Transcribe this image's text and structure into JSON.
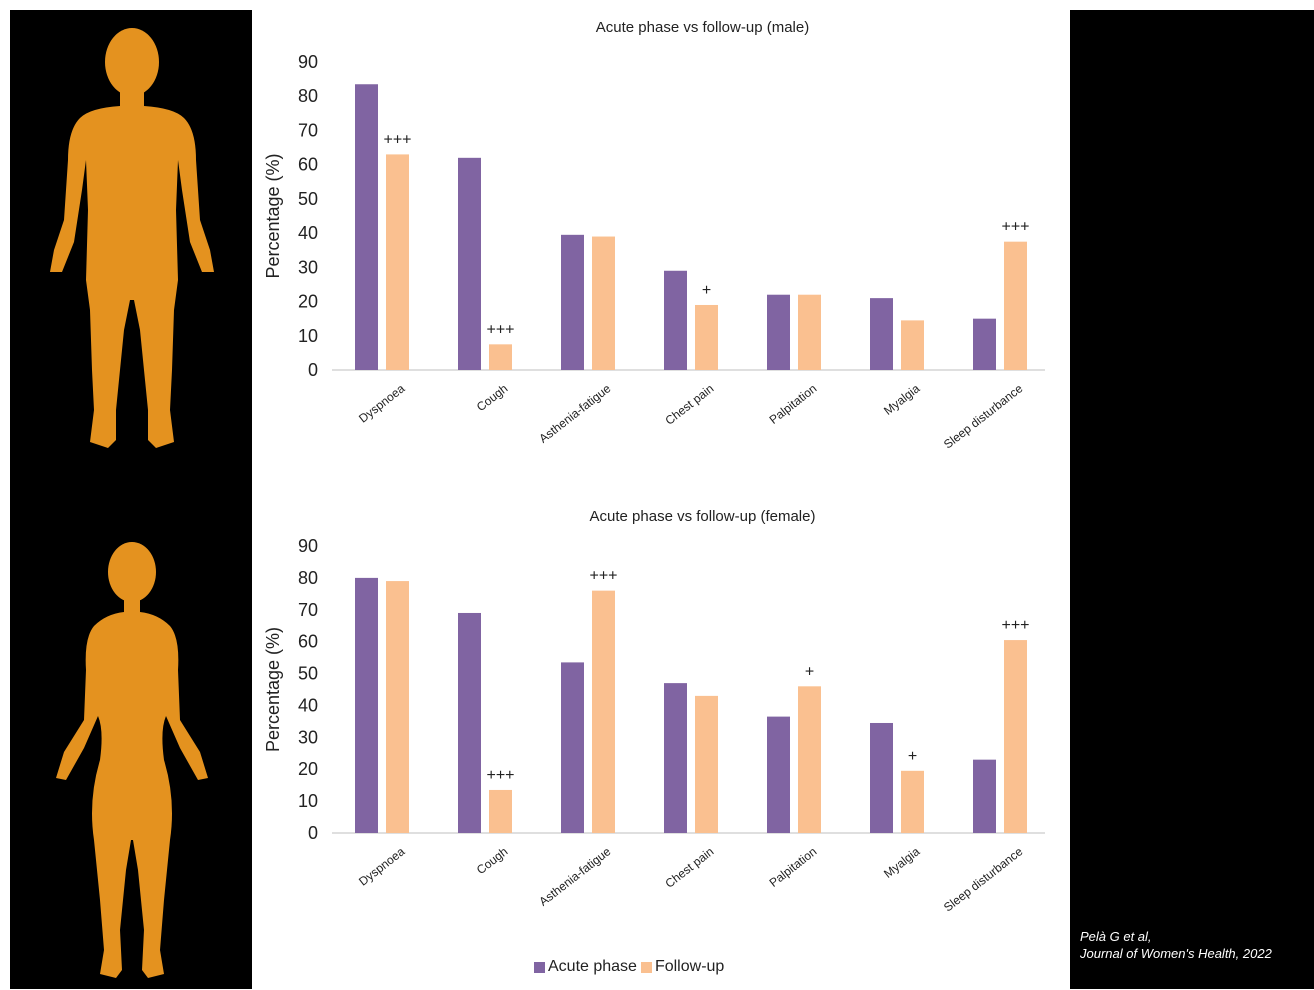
{
  "colors": {
    "acute": "#8064a2",
    "follow": "#fac090",
    "body": "#e4921f",
    "panel": "#000000"
  },
  "figures": {
    "top_icon": "male-body-silhouette-icon",
    "bottom_icon": "female-body-silhouette-icon"
  },
  "legend": {
    "acute_label": "Acute phase",
    "follow_label": "Follow-up"
  },
  "citation": {
    "line1": "Pelà G et al,",
    "line2": "Journal of Women's Health, 2022"
  },
  "chart_data": [
    {
      "type": "bar",
      "title": "Acute phase vs follow-up (male)",
      "ylabel": "Percentage (%)",
      "xlabel": "",
      "ylim": [
        0,
        90
      ],
      "yticks": [
        0,
        10,
        20,
        30,
        40,
        50,
        60,
        70,
        80,
        90
      ],
      "categories": [
        "Dyspnoea",
        "Cough",
        "Asthenia-fatigue",
        "Chest pain",
        "Palpitation",
        "Myalgia",
        "Sleep disturbance"
      ],
      "series": [
        {
          "name": "Acute phase",
          "values": [
            83.5,
            62,
            39.5,
            29,
            22,
            21,
            15
          ]
        },
        {
          "name": "Follow-up",
          "values": [
            63,
            7.5,
            39,
            19,
            22,
            14.5,
            37.5
          ]
        }
      ],
      "annotations": [
        "+++",
        "+++",
        "",
        "+",
        "",
        "",
        "+++"
      ]
    },
    {
      "type": "bar",
      "title": "Acute phase vs follow-up (female)",
      "ylabel": "Percentage (%)",
      "xlabel": "",
      "ylim": [
        0,
        90
      ],
      "yticks": [
        0,
        10,
        20,
        30,
        40,
        50,
        60,
        70,
        80,
        90
      ],
      "categories": [
        "Dyspnoea",
        "Cough",
        "Asthenia-fatigue",
        "Chest pain",
        "Palpitation",
        "Myalgia",
        "Sleep disturbance"
      ],
      "series": [
        {
          "name": "Acute phase",
          "values": [
            80,
            69,
            53.5,
            47,
            36.5,
            34.5,
            23
          ]
        },
        {
          "name": "Follow-up",
          "values": [
            79,
            13.5,
            76,
            43,
            46,
            19.5,
            60.5
          ]
        }
      ],
      "annotations": [
        "",
        "+++",
        "+++",
        "",
        "+",
        "+",
        "+++"
      ]
    }
  ]
}
